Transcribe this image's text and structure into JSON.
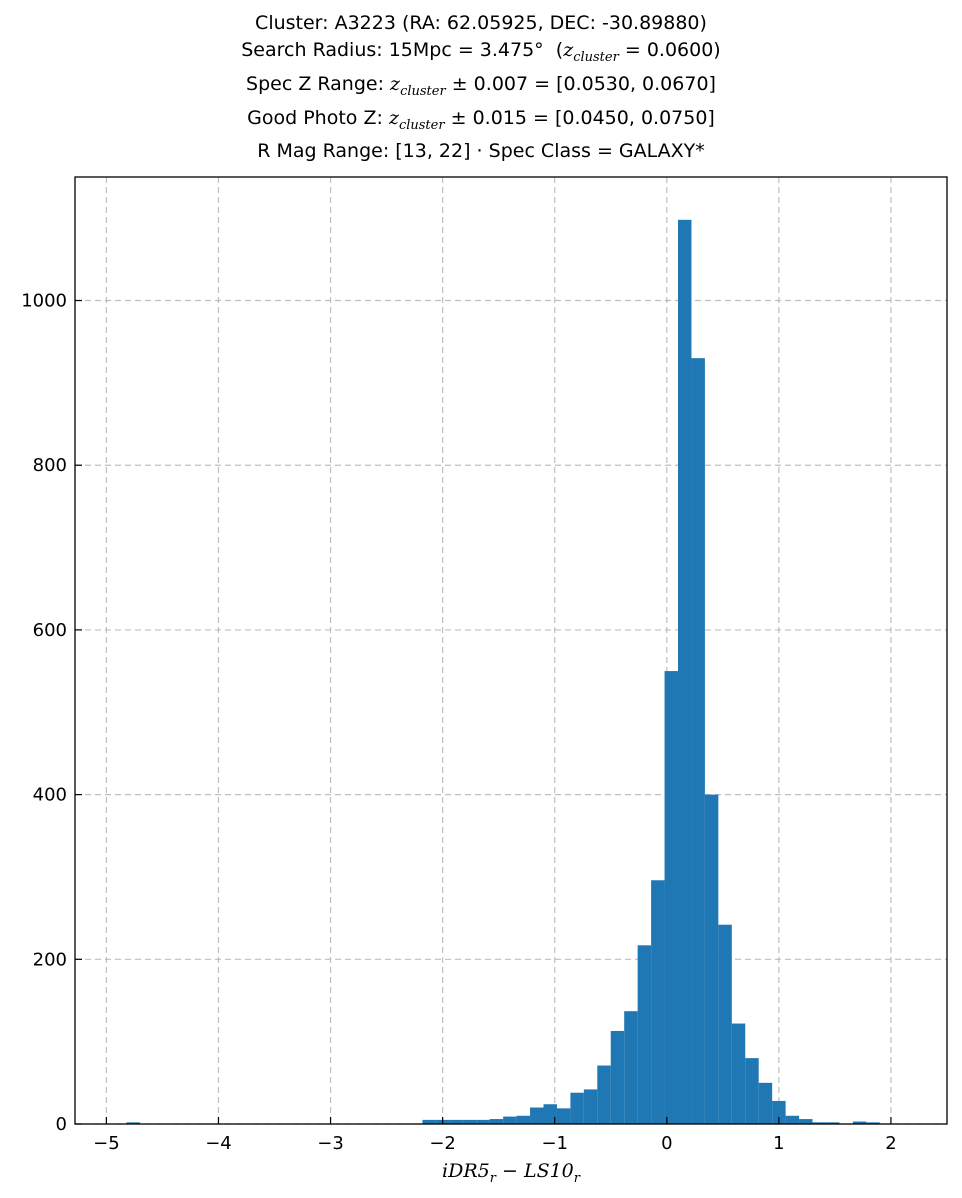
{
  "chart_data": {
    "type": "bar",
    "title_lines": [
      "Cluster: A3223 (RA: 62.05925, DEC: -30.89880)",
      "Search Radius: 15Mpc = 3.475° (z_cluster = 0.0600)",
      "Spec Z Range: z_cluster ± 0.007 = [0.0530, 0.0670]",
      "Good Photo Z: z_cluster ± 0.015 = [0.0450, 0.0750]",
      "R Mag Range: [13, 22] · Spec Class = GALAXY*"
    ],
    "xlabel": "iDR5_r − LS10_r",
    "ylabel": "",
    "xlim": [
      -5.28,
      2.5
    ],
    "ylim": [
      0,
      1150
    ],
    "xticks": [
      -5,
      -4,
      -3,
      -2,
      -1,
      0,
      1,
      2
    ],
    "xtick_labels": [
      "−5",
      "−4",
      "−3",
      "−2",
      "−1",
      "0",
      "1",
      "2"
    ],
    "yticks": [
      0,
      200,
      400,
      600,
      800,
      1000
    ],
    "ytick_labels": [
      "0",
      "200",
      "400",
      "600",
      "800",
      "1000"
    ],
    "grid": true,
    "bar_color": "#1f77b4",
    "bin_width": 0.12,
    "bin_start": -4.82,
    "values": [
      2,
      0,
      0,
      0,
      0,
      0,
      0,
      0,
      0,
      0,
      0,
      0,
      0,
      0,
      0,
      0,
      0,
      0,
      0,
      0,
      0,
      0,
      5,
      5,
      5,
      5,
      5,
      6,
      9,
      10,
      20,
      24,
      19,
      38,
      42,
      71,
      113,
      137,
      217,
      296,
      550,
      1098,
      930,
      400,
      242,
      122,
      80,
      50,
      28,
      10,
      6,
      2,
      2,
      0,
      3,
      2,
      0,
      0,
      0
    ]
  }
}
